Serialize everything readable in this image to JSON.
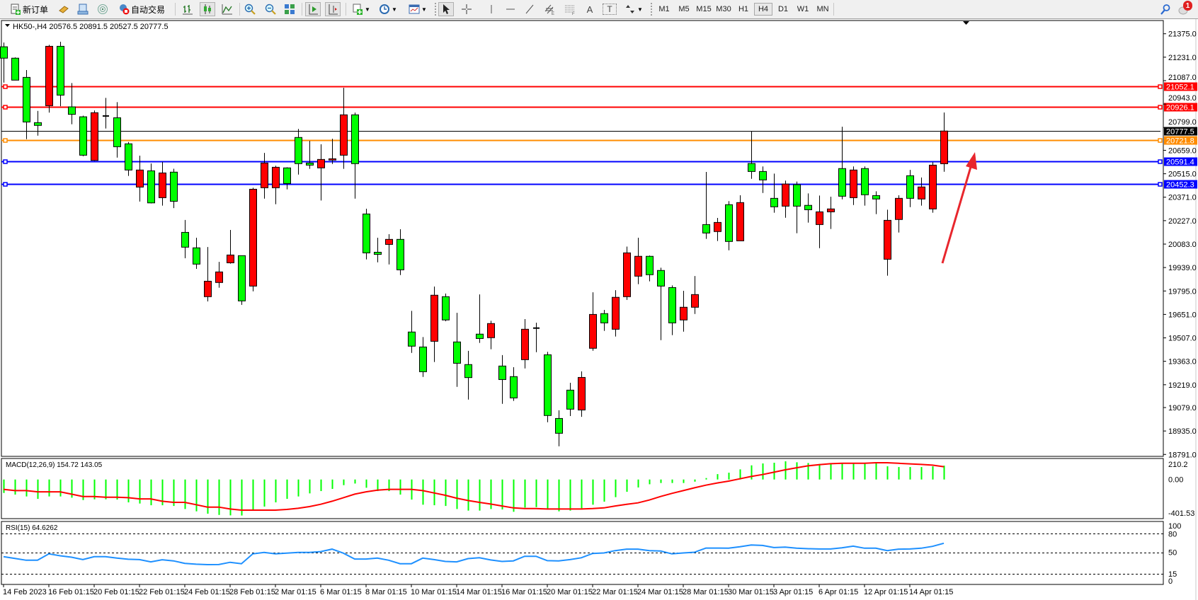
{
  "toolbar": {
    "new_order_label": "新订单",
    "autotrade_label": "自动交易",
    "text_tool_label": "A",
    "label_tool_label": "T",
    "timeframes": [
      "M1",
      "M5",
      "M15",
      "M30",
      "H1",
      "H4",
      "D1",
      "W1",
      "MN"
    ],
    "active_timeframe": "H4",
    "notification_count": "1"
  },
  "chart": {
    "symbol_info": "HK50-,H4  20576.5 20891.5 20527.5 20777.5",
    "bullish_color": "#ff0000",
    "bearish_color": "#00ff00",
    "price_ticks": [
      "21375.0",
      "21231.0",
      "21087.0",
      "20943.0",
      "20799.0",
      "20659.0",
      "20515.0",
      "20371.0",
      "20227.0",
      "20083.0",
      "19939.0",
      "19795.0",
      "19651.0",
      "19507.0",
      "19363.0",
      "19219.0",
      "19079.0",
      "18935.0",
      "18791.0"
    ],
    "levels": [
      {
        "value": 21052.1,
        "label": "21052.1",
        "color": "#ff0000"
      },
      {
        "value": 20926.1,
        "label": "20926.1",
        "color": "#ff0000"
      },
      {
        "value": 20721.8,
        "label": "20721.8",
        "color": "#ff8c00"
      },
      {
        "value": 20591.4,
        "label": "20591.4",
        "color": "#0000ff"
      },
      {
        "value": 20452.3,
        "label": "20452.3",
        "color": "#0000ff"
      }
    ],
    "current_price": {
      "value": 20777.5,
      "label": "20777.5",
      "color": "#000000"
    },
    "annotation_arrow_color": "#e8262d",
    "time_labels": [
      "14 Feb 2023",
      "16 Feb 01:15",
      "20 Feb 01:15",
      "22 Feb 01:15",
      "24 Feb 01:15",
      "28 Feb 01:15",
      "2 Mar 01:15",
      "6 Mar 01:15",
      "8 Mar 01:15",
      "10 Mar 01:15",
      "14 Mar 01:15",
      "16 Mar 01:15",
      "20 Mar 01:15",
      "22 Mar 01:15",
      "24 Mar 01:15",
      "28 Mar 01:15",
      "30 Mar 01:15",
      "3 Apr 01:15",
      "6 Apr 01:15",
      "12 Apr 01:15",
      "14 Apr 01:15"
    ]
  },
  "macd": {
    "header": "MACD(12,26,9) 154.72 143.05",
    "axis_labels": [
      "210.2",
      "0.00",
      "-401.53"
    ],
    "histogram_color": "#00ff00",
    "signal_color": "#ff0000"
  },
  "rsi": {
    "header": "RSI(15) 64.6262",
    "axis_labels": [
      "100",
      "80",
      "50",
      "15",
      "0"
    ],
    "levels": [
      80,
      50,
      15
    ],
    "line_color": "#1e90ff"
  },
  "chart_data": [
    {
      "type": "candlestick",
      "symbol": "HK50-",
      "timeframe": "H4",
      "ylim": [
        18791,
        21375
      ],
      "ohlc": [
        [
          21295,
          21321,
          21075,
          21225
        ],
        [
          21225,
          21230,
          21090,
          21090
        ],
        [
          21107,
          21152,
          20728,
          20833
        ],
        [
          20829,
          20901,
          20749,
          20812
        ],
        [
          20933,
          21307,
          20891,
          21298
        ],
        [
          21298,
          21326,
          20930,
          20998
        ],
        [
          20926,
          21072,
          20819,
          20880
        ],
        [
          20865,
          20872,
          20623,
          20629
        ],
        [
          20597,
          20904,
          20594,
          20890
        ],
        [
          20870,
          20981,
          20793,
          20870
        ],
        [
          20859,
          20955,
          20614,
          20681
        ],
        [
          20699,
          20710,
          20502,
          20538
        ],
        [
          20433,
          20626,
          20344,
          20538
        ],
        [
          20533,
          20578,
          20333,
          20336
        ],
        [
          20368,
          20588,
          20319,
          20520
        ],
        [
          20525,
          20546,
          20304,
          20346
        ],
        [
          20155,
          20231,
          19996,
          20064
        ],
        [
          20060,
          20122,
          19931,
          19960
        ],
        [
          19760,
          20065,
          19731,
          19855
        ],
        [
          19847,
          19974,
          19815,
          19912
        ],
        [
          19968,
          20170,
          19963,
          20016
        ],
        [
          20012,
          20012,
          19710,
          19734
        ],
        [
          19825,
          20429,
          19793,
          20420
        ],
        [
          20429,
          20643,
          20362,
          20581
        ],
        [
          20429,
          20564,
          20328,
          20555
        ],
        [
          20551,
          20555,
          20419,
          20455
        ],
        [
          20738,
          20790,
          20510,
          20577
        ],
        [
          20581,
          20717,
          20545,
          20568
        ],
        [
          20551,
          20696,
          20351,
          20603
        ],
        [
          20599,
          20730,
          20575,
          20607
        ],
        [
          20629,
          21043,
          20545,
          20877
        ],
        [
          20877,
          20891,
          20362,
          20577
        ],
        [
          20268,
          20300,
          19989,
          20029
        ],
        [
          20033,
          20122,
          19971,
          20020
        ],
        [
          20081,
          20144,
          19958,
          20112
        ],
        [
          20112,
          20174,
          19893,
          19925
        ],
        [
          19543,
          19673,
          19415,
          19456
        ],
        [
          19451,
          19512,
          19267,
          19299
        ],
        [
          19486,
          19822,
          19359,
          19769
        ],
        [
          19760,
          19779,
          19609,
          19617
        ],
        [
          19482,
          19661,
          19206,
          19351
        ],
        [
          19343,
          19427,
          19128,
          19263
        ],
        [
          19530,
          19774,
          19476,
          19503
        ],
        [
          19508,
          19612,
          19437,
          19595
        ],
        [
          19334,
          19401,
          19102,
          19251
        ],
        [
          19269,
          19327,
          19120,
          19138
        ],
        [
          19373,
          19622,
          19319,
          19560
        ],
        [
          19567,
          19600,
          19419,
          19567
        ],
        [
          19403,
          19421,
          18989,
          19030
        ],
        [
          19012,
          19062,
          18841,
          18921
        ],
        [
          19186,
          19231,
          19027,
          19069
        ],
        [
          19064,
          19301,
          19022,
          19264
        ],
        [
          19443,
          19787,
          19428,
          19651
        ],
        [
          19656,
          19679,
          19550,
          19599
        ],
        [
          19560,
          19800,
          19515,
          19756
        ],
        [
          19760,
          20068,
          19740,
          20029
        ],
        [
          19886,
          20122,
          19837,
          20008
        ],
        [
          20008,
          20013,
          19854,
          19895
        ],
        [
          19921,
          19938,
          19493,
          19825
        ],
        [
          19816,
          19829,
          19524,
          19599
        ],
        [
          19617,
          19796,
          19545,
          19695
        ],
        [
          19695,
          19887,
          19654,
          19773
        ],
        [
          20203,
          20526,
          20115,
          20151
        ],
        [
          20160,
          20244,
          20102,
          20216
        ],
        [
          20325,
          20347,
          20045,
          20099
        ],
        [
          20103,
          20383,
          20103,
          20338
        ],
        [
          20578,
          20774,
          20484,
          20529
        ],
        [
          20529,
          20560,
          20397,
          20477
        ],
        [
          20364,
          20516,
          20276,
          20312
        ],
        [
          20316,
          20473,
          20245,
          20452
        ],
        [
          20448,
          20467,
          20150,
          20316
        ],
        [
          20321,
          20394,
          20215,
          20294
        ],
        [
          20203,
          20381,
          20058,
          20281
        ],
        [
          20281,
          20374,
          20176,
          20299
        ],
        [
          20547,
          20804,
          20358,
          20377
        ],
        [
          20368,
          20560,
          20323,
          20538
        ],
        [
          20547,
          20560,
          20319,
          20386
        ],
        [
          20381,
          20407,
          20267,
          20360
        ],
        [
          19990,
          20294,
          19889,
          20229
        ],
        [
          20234,
          20383,
          20154,
          20364
        ],
        [
          20503,
          20539,
          20310,
          20364
        ],
        [
          20360,
          20492,
          20319,
          20434
        ],
        [
          20299,
          20586,
          20276,
          20568
        ],
        [
          20576.5,
          20891.5,
          20527.5,
          20777.5
        ]
      ]
    },
    {
      "type": "bar",
      "name": "MACD(12,26,9)",
      "ylim": [
        -401.53,
        210.2
      ],
      "main": [
        -150,
        -168,
        -189,
        -216,
        -189,
        -189,
        -203,
        -229,
        -221,
        -221,
        -224,
        -255,
        -268,
        -287,
        -287,
        -295,
        -329,
        -355,
        -381,
        -395,
        -400,
        -401.5,
        -347,
        -302,
        -255,
        -216,
        -189,
        -155,
        -129,
        -105,
        -63,
        -45,
        -92,
        -129,
        -129,
        -168,
        -224,
        -281,
        -287,
        -295,
        -329,
        -347,
        -347,
        -329,
        -334,
        -360,
        -313,
        -308,
        -329,
        -355,
        -347,
        -321,
        -281,
        -247,
        -197,
        -137,
        -89,
        -53,
        -39,
        -39,
        -39,
        -24,
        16,
        60,
        76,
        113,
        158,
        179,
        187,
        203,
        192,
        184,
        174,
        174,
        179,
        179,
        187,
        179,
        147,
        139,
        139,
        139,
        147,
        154.72
      ],
      "signal": [
        -110,
        -124,
        -124,
        -137,
        -137,
        -137,
        -163,
        -189,
        -189,
        -197,
        -197,
        -203,
        -216,
        -216,
        -242,
        -255,
        -255,
        -281,
        -308,
        -308,
        -329,
        -342,
        -342,
        -342,
        -342,
        -334,
        -321,
        -302,
        -276,
        -242,
        -203,
        -163,
        -137,
        -118,
        -110,
        -110,
        -110,
        -124,
        -150,
        -176,
        -208,
        -234,
        -255,
        -274,
        -295,
        -316,
        -324,
        -324,
        -329,
        -329,
        -329,
        -329,
        -324,
        -316,
        -295,
        -276,
        -260,
        -229,
        -189,
        -155,
        -124,
        -92,
        -63,
        -39,
        -18,
        8,
        34,
        55,
        81,
        108,
        131,
        152,
        166,
        176,
        181,
        181,
        181,
        187,
        187,
        181,
        174,
        168,
        160,
        143.05
      ]
    },
    {
      "type": "line",
      "name": "RSI(15)",
      "ylim": [
        0,
        100
      ],
      "values": [
        42.8,
        40,
        37,
        37,
        47.3,
        44.3,
        42,
        38,
        42.8,
        42.8,
        40.5,
        38.6,
        38,
        34.4,
        37.8,
        36,
        32,
        30.6,
        29.9,
        30,
        33.7,
        31.4,
        47.3,
        49.6,
        47.3,
        48.5,
        49.6,
        49.6,
        51,
        55,
        48.5,
        39,
        39,
        40.5,
        37,
        31.4,
        31.4,
        40.5,
        38,
        35,
        34.4,
        39.7,
        41,
        37.5,
        35,
        36,
        43.5,
        43.5,
        36.3,
        36,
        38,
        41,
        48.1,
        48.9,
        52.7,
        55,
        55,
        52.7,
        51.9,
        47.3,
        48.9,
        50,
        56.8,
        56.8,
        56.5,
        59,
        61.8,
        61,
        57.6,
        58.4,
        56.5,
        55.7,
        55.3,
        55.3,
        57.2,
        59.9,
        56.5,
        56.5,
        52.7,
        55,
        55.3,
        56.5,
        59.5,
        64.6262
      ]
    }
  ]
}
